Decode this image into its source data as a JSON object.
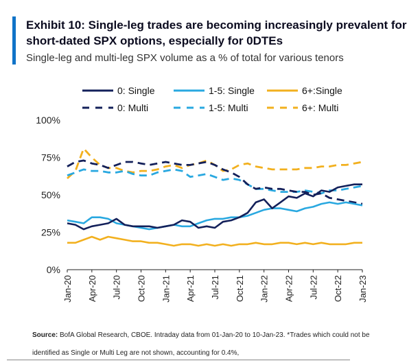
{
  "header": {
    "title": "Exhibit 10: Single-leg trades are becoming increasingly prevalent for short-dated SPX options, especially for 0DTEs",
    "subtitle": "Single-leg and multi-leg SPX volume as a % of total for various tenors"
  },
  "footer": {
    "source_label": "Source:",
    "source_text": " BofA Global Research, CBOE. Intraday data from 01-Jan-20 to 10-Jan-23. *Trades which could not be identified as Single or Multi Leg are not shown, accounting for 0.4%,"
  },
  "colors": {
    "navy": "#13205a",
    "light_blue": "#29a8e0",
    "gold": "#f2b01e",
    "accent": "#0f73c8"
  },
  "chart_data": {
    "type": "line",
    "title": "",
    "xlabel": "",
    "ylabel": "",
    "ylim": [
      0,
      100
    ],
    "y_ticks": [
      "0%",
      "25%",
      "50%",
      "75%",
      "100%"
    ],
    "x_ticks": [
      "Jan-20",
      "Apr-20",
      "Jul-20",
      "Oct-20",
      "Jan-21",
      "Apr-21",
      "Jul-21",
      "Oct-21",
      "Jan-22",
      "Apr-22",
      "Jul-22",
      "Oct-22",
      "Jan-23"
    ],
    "legend_position": "top",
    "x_index_range": [
      0,
      36
    ],
    "series": [
      {
        "name": "0: Single",
        "color": "#13205a",
        "dash": "solid",
        "values": [
          31,
          30,
          27,
          29,
          30,
          31,
          34,
          30,
          29,
          29,
          29,
          28,
          29,
          30,
          33,
          32,
          28,
          29,
          28,
          32,
          33,
          35,
          38,
          45,
          47,
          41,
          45,
          49,
          48,
          51,
          49,
          53,
          52,
          55,
          56,
          57,
          57
        ]
      },
      {
        "name": "1-5: Single",
        "color": "#29a8e0",
        "dash": "solid",
        "values": [
          33,
          32,
          31,
          35,
          35,
          34,
          31,
          30,
          29,
          28,
          27,
          28,
          29,
          30,
          29,
          29,
          31,
          33,
          34,
          34,
          35,
          35,
          36,
          38,
          40,
          41,
          41,
          40,
          39,
          41,
          42,
          44,
          45,
          44,
          45,
          44,
          43
        ]
      },
      {
        "name": "6+:Single",
        "color": "#f2b01e",
        "dash": "solid",
        "values": [
          18,
          18,
          20,
          22,
          20,
          22,
          21,
          20,
          19,
          19,
          18,
          18,
          17,
          16,
          17,
          17,
          16,
          17,
          16,
          17,
          16,
          17,
          17,
          18,
          17,
          17,
          18,
          18,
          17,
          18,
          17,
          18,
          17,
          17,
          17,
          18,
          18
        ]
      },
      {
        "name": "0: Multi",
        "color": "#13205a",
        "dash": "dashed",
        "values": [
          69,
          72,
          73,
          71,
          70,
          68,
          70,
          72,
          72,
          71,
          70,
          71,
          72,
          71,
          70,
          70,
          71,
          72,
          70,
          67,
          65,
          62,
          57,
          54,
          55,
          54,
          54,
          53,
          52,
          52,
          50,
          51,
          48,
          47,
          46,
          45,
          44
        ]
      },
      {
        "name": "1-5: Multi",
        "color": "#29a8e0",
        "dash": "dashed",
        "values": [
          63,
          65,
          67,
          66,
          66,
          65,
          65,
          66,
          64,
          63,
          63,
          65,
          66,
          67,
          66,
          62,
          63,
          64,
          62,
          60,
          61,
          60,
          57,
          54,
          54,
          53,
          52,
          52,
          52,
          53,
          52,
          51,
          53,
          53,
          54,
          55,
          56
        ]
      },
      {
        "name": "6+: Multi",
        "color": "#f2b01e",
        "dash": "dashed",
        "values": [
          61,
          66,
          81,
          75,
          70,
          68,
          68,
          66,
          65,
          66,
          66,
          67,
          69,
          70,
          68,
          70,
          71,
          73,
          70,
          66,
          67,
          70,
          71,
          69,
          68,
          67,
          67,
          67,
          67,
          68,
          68,
          69,
          69,
          70,
          70,
          71,
          72
        ]
      }
    ]
  }
}
